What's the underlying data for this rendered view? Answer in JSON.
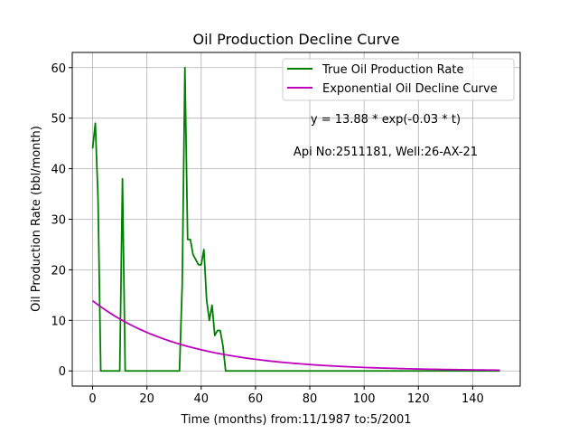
{
  "chart_data": {
    "type": "line",
    "title": "Oil Production Decline Curve",
    "xlabel": "Time (months) from:11/1987 to:5/2001",
    "ylabel": "Oil Production Rate (bbl/month)",
    "xlim": [
      -7.5,
      157.5
    ],
    "ylim": [
      -3,
      63
    ],
    "xticks": [
      0,
      20,
      40,
      60,
      80,
      100,
      120,
      140
    ],
    "yticks": [
      0,
      10,
      20,
      30,
      40,
      50,
      60
    ],
    "grid": true,
    "legend_position": "top-right",
    "annotations": [
      "y = 13.88 * exp(-0.03 * t)",
      "Api No:2511181, Well:26-AX-21"
    ],
    "series": [
      {
        "name": "True Oil Production Rate",
        "color": "#008000",
        "x": [
          0,
          1,
          2,
          3,
          4,
          5,
          6,
          7,
          8,
          9,
          10,
          11,
          12,
          13,
          14,
          20,
          25,
          30,
          32,
          33,
          34,
          35,
          36,
          37,
          38,
          39,
          40,
          41,
          42,
          43,
          44,
          45,
          46,
          47,
          48,
          49,
          50,
          60,
          80,
          100,
          120,
          140,
          150
        ],
        "y": [
          44,
          49,
          34,
          0,
          0,
          0,
          0,
          0,
          0,
          0,
          0,
          38,
          0,
          0,
          0,
          0,
          0,
          0,
          0,
          17,
          60,
          26,
          26,
          23,
          22,
          21,
          21,
          24,
          14,
          10,
          13,
          7,
          8,
          8,
          5,
          0,
          0,
          0,
          0,
          0,
          0,
          0,
          0
        ]
      },
      {
        "name": "Exponential Oil Decline Curve",
        "color": "#bf00bf",
        "formula": {
          "a": 13.88,
          "b": 0.03
        },
        "x_range": [
          0,
          150
        ]
      }
    ]
  }
}
